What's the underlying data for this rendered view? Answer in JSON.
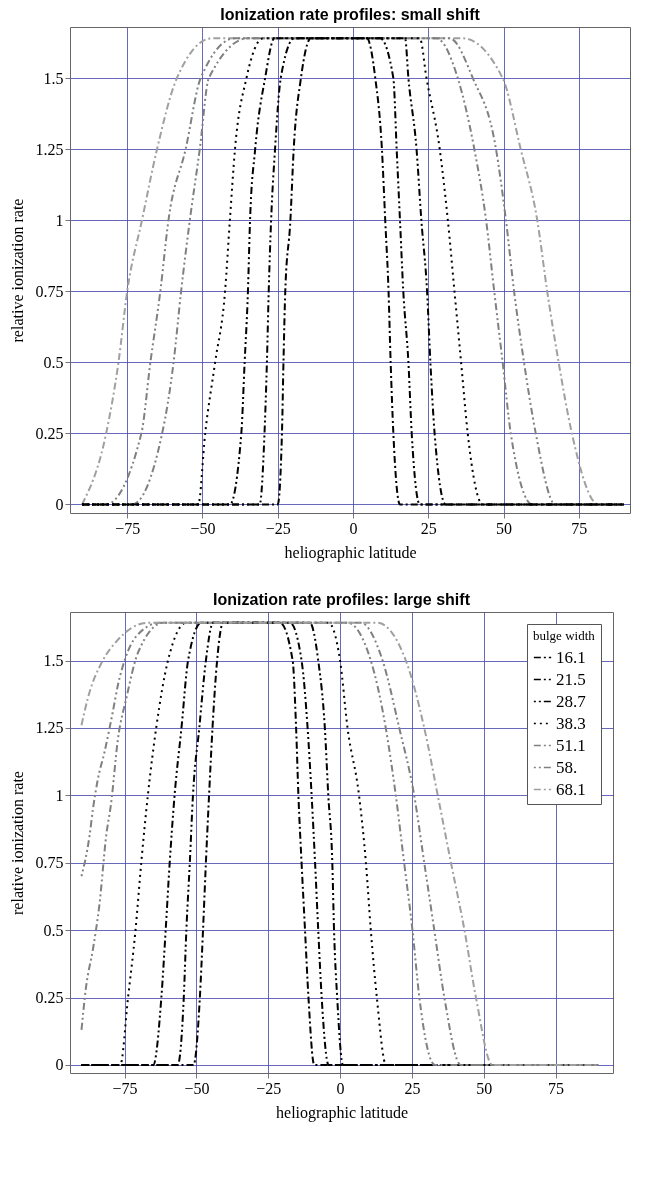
{
  "chart_data": [
    {
      "type": "line",
      "title": "Ionization rate profiles: small shift",
      "xlabel": "heliographic latitude",
      "ylabel": "relative ionization rate",
      "xlim": [
        -94,
        92
      ],
      "ylim": [
        -0.03,
        1.68
      ],
      "xticks": [
        -75,
        -50,
        -25,
        0,
        25,
        50,
        75
      ],
      "yticks": [
        0,
        0.25,
        0.5,
        0.75,
        1,
        1.25,
        1.5
      ],
      "grid": true,
      "legend": false,
      "series": [
        {
          "color": "#a0a0a0",
          "line_style": "dashed",
          "x": [
            -90,
            -82,
            -77.9,
            -75,
            -70.1,
            -65.1,
            -58.5,
            -47,
            36.5,
            49.7,
            55.7,
            61.2,
            64.5,
            68.3,
            72.7,
            81.5,
            90
          ],
          "values": [
            0,
            0.25,
            0.5,
            0.75,
            1,
            1.25,
            1.5,
            1.64,
            1.64,
            1.5,
            1.25,
            1,
            0.75,
            0.5,
            0.25,
            0,
            0
          ]
        },
        {
          "color": "#808080",
          "line_style": "dashed",
          "x": [
            -90,
            -82.1,
            -70.3,
            -67.3,
            -64,
            -61.3,
            -55.6,
            -50.6,
            -39.3,
            32.1,
            39.8,
            47.5,
            50.8,
            53.5,
            56.8,
            60.7,
            67.2,
            90
          ],
          "values": [
            0,
            0,
            0.25,
            0.5,
            0.75,
            1,
            1.25,
            1.5,
            1.64,
            1.64,
            1.5,
            1.25,
            1,
            0.75,
            0.5,
            0.25,
            0,
            0
          ]
        },
        {
          "color": "#808080",
          "line_style": "dashed",
          "x": [
            -90,
            -73.4,
            -63.4,
            -59.6,
            -57.1,
            -54.2,
            -50.9,
            -47.9,
            -34.9,
            27.7,
            34.8,
            40.3,
            44.2,
            46.9,
            49.7,
            52.4,
            59.6,
            90
          ],
          "values": [
            0,
            0,
            0.25,
            0.5,
            0.75,
            1,
            1.25,
            1.5,
            1.64,
            1.64,
            1.5,
            1.25,
            1,
            0.75,
            0.5,
            0.25,
            0,
            0
          ]
        },
        {
          "color": "#000000",
          "line_style": "dotted",
          "x": [
            -90,
            -51.4,
            -49.1,
            -45.8,
            -42.5,
            -40.9,
            -39.2,
            -35.4,
            -29.9,
            22.2,
            24.4,
            28.8,
            31.5,
            33.7,
            35.9,
            38.1,
            43.1,
            90
          ],
          "values": [
            0,
            0,
            0.25,
            0.5,
            0.75,
            1,
            1.25,
            1.5,
            1.64,
            1.64,
            1.5,
            1.25,
            1,
            0.75,
            0.5,
            0.25,
            0,
            0
          ]
        },
        {
          "color": "#000000",
          "line_style": "dashed",
          "x": [
            -90,
            -40.9,
            -37.1,
            -36,
            -34.9,
            -34.2,
            -32.5,
            -29.2,
            -26.1,
            17.3,
            18.4,
            21.1,
            22.7,
            24.6,
            25.7,
            27.1,
            30.8,
            90
          ],
          "values": [
            0,
            0,
            0.25,
            0.5,
            0.75,
            1,
            1.25,
            1.5,
            1.64,
            1.64,
            1.5,
            1.25,
            1,
            0.75,
            0.5,
            0.25,
            0,
            0
          ]
        },
        {
          "color": "#000000",
          "line_style": "dashed",
          "x": [
            -90,
            -31,
            -29.4,
            -28.6,
            -28,
            -27.2,
            -25.9,
            -24,
            -19.5,
            9,
            13.4,
            14.5,
            15.6,
            16.7,
            18.4,
            19.5,
            22.2,
            90
          ],
          "values": [
            0,
            0,
            0.25,
            0.5,
            0.75,
            1,
            1.25,
            1.5,
            1.64,
            1.64,
            1.5,
            1.25,
            1,
            0.75,
            0.5,
            0.25,
            0,
            0
          ]
        },
        {
          "color": "#000000",
          "line_style": "dashed",
          "x": [
            -90,
            -25,
            -23.6,
            -23.1,
            -22.5,
            -20.8,
            -19.7,
            -17.3,
            -14,
            4.6,
            7.4,
            9.6,
            10.7,
            11.8,
            12.5,
            13.4,
            15.6,
            90
          ],
          "values": [
            0,
            0,
            0.25,
            0.5,
            0.75,
            1,
            1.25,
            1.5,
            1.64,
            1.64,
            1.5,
            1.25,
            1,
            0.75,
            0.5,
            0.25,
            0,
            0
          ]
        }
      ]
    },
    {
      "type": "line",
      "title": "Ionization rate profiles: large shift",
      "xlabel": "heliographic latitude",
      "ylabel": "relative ionization rate",
      "legend_title": "bulge width",
      "xlim": [
        -94,
        95
      ],
      "ylim": [
        -0.03,
        1.68
      ],
      "xticks": [
        -75,
        -50,
        -25,
        0,
        25,
        50,
        75
      ],
      "yticks": [
        0,
        0.25,
        0.5,
        0.75,
        1,
        1.25,
        1.5
      ],
      "grid": true,
      "legend": "top right",
      "series": [
        {
          "name": "16.1",
          "color": "#000000",
          "line_style": "dashed",
          "x": [
            -90,
            -51,
            -48.8,
            -47.7,
            -46.7,
            -45.6,
            -44.4,
            -42.8,
            -40.7,
            -20.9,
            -16.5,
            -15.3,
            -14.5,
            -13.4,
            -12.2,
            -11,
            -9,
            90
          ],
          "values": [
            0,
            0,
            0.25,
            0.5,
            0.75,
            1,
            1.25,
            1.5,
            1.64,
            1.64,
            1.5,
            1.25,
            1,
            0.75,
            0.5,
            0.25,
            0,
            0
          ]
        },
        {
          "name": "21.5",
          "color": "#000000",
          "line_style": "dashed",
          "x": [
            -90,
            -56.5,
            -54.4,
            -53.5,
            -52.3,
            -51.2,
            -49,
            -46.7,
            -44.2,
            -17.4,
            -13.4,
            -11.3,
            -9.9,
            -8.7,
            -7.6,
            -6.4,
            -4,
            90
          ],
          "values": [
            0,
            0,
            0.25,
            0.5,
            0.75,
            1,
            1.25,
            1.5,
            1.64,
            1.64,
            1.5,
            1.25,
            1,
            0.75,
            0.5,
            0.25,
            0,
            0
          ]
        },
        {
          "name": "28.7",
          "color": "#000000",
          "line_style": "dashed",
          "x": [
            -90,
            -65,
            -62.2,
            -60.7,
            -59.3,
            -57.6,
            -55.2,
            -52.9,
            -48.3,
            -10.5,
            -7.6,
            -5.3,
            -4.1,
            -2.7,
            -2.1,
            -1,
            1,
            90
          ],
          "values": [
            0,
            0,
            0.25,
            0.5,
            0.75,
            1,
            1.25,
            1.5,
            1.64,
            1.64,
            1.5,
            1.25,
            1,
            0.75,
            0.5,
            0.25,
            0,
            0
          ]
        },
        {
          "name": "38.3",
          "color": "#000000",
          "line_style": "dotted",
          "x": [
            -90,
            -76.5,
            -73.8,
            -71.2,
            -69.2,
            -66.9,
            -64,
            -59.9,
            -53.5,
            -4,
            0,
            2.6,
            6.6,
            9,
            10.7,
            12.8,
            16,
            90
          ],
          "values": [
            0,
            0,
            0.25,
            0.5,
            0.75,
            1,
            1.25,
            1.5,
            1.64,
            1.64,
            1.5,
            1.25,
            1,
            0.75,
            0.5,
            0.25,
            0,
            0
          ]
        },
        {
          "name": "51.1",
          "color": "#808080",
          "line_style": "dashed",
          "x": [
            -90,
            -88.4,
            -86,
            -83.7,
            -81.4,
            -79.7,
            -77.3,
            -74.4,
            -70.3,
            -61.6,
            2.6,
            10.7,
            15.9,
            19.4,
            22.3,
            25.2,
            27.6,
            33,
            90
          ],
          "values": [
            0.13,
            0.29,
            0.43,
            0.6,
            0.85,
            0.97,
            1.21,
            1.36,
            1.53,
            1.64,
            1.64,
            1.5,
            1.25,
            1,
            0.75,
            0.5,
            0.25,
            0,
            0
          ]
        },
        {
          "name": "58.",
          "color": "#808080",
          "line_style": "dashed",
          "x": [
            -90,
            -87.2,
            -86,
            -84.3,
            -82,
            -79.1,
            -77.3,
            -75,
            -70.9,
            -62.8,
            7.2,
            14.8,
            20.6,
            25.8,
            29.3,
            32.8,
            36.3,
            42,
            90
          ],
          "values": [
            0.7,
            0.85,
            0.95,
            1.06,
            1.16,
            1.31,
            1.41,
            1.5,
            1.59,
            1.64,
            1.64,
            1.5,
            1.25,
            1,
            0.75,
            0.5,
            0.25,
            0,
            0
          ]
        },
        {
          "name": "68.1",
          "color": "#a0a0a0",
          "line_style": "dashed",
          "x": [
            -90,
            -87.8,
            -82.6,
            -77.9,
            -67,
            13,
            22.9,
            29.3,
            34,
            38.6,
            43.3,
            47.3,
            53,
            90
          ],
          "values": [
            1.26,
            1.36,
            1.5,
            1.57,
            1.64,
            1.64,
            1.5,
            1.25,
            1,
            0.75,
            0.5,
            0.25,
            0,
            0
          ]
        }
      ]
    }
  ]
}
